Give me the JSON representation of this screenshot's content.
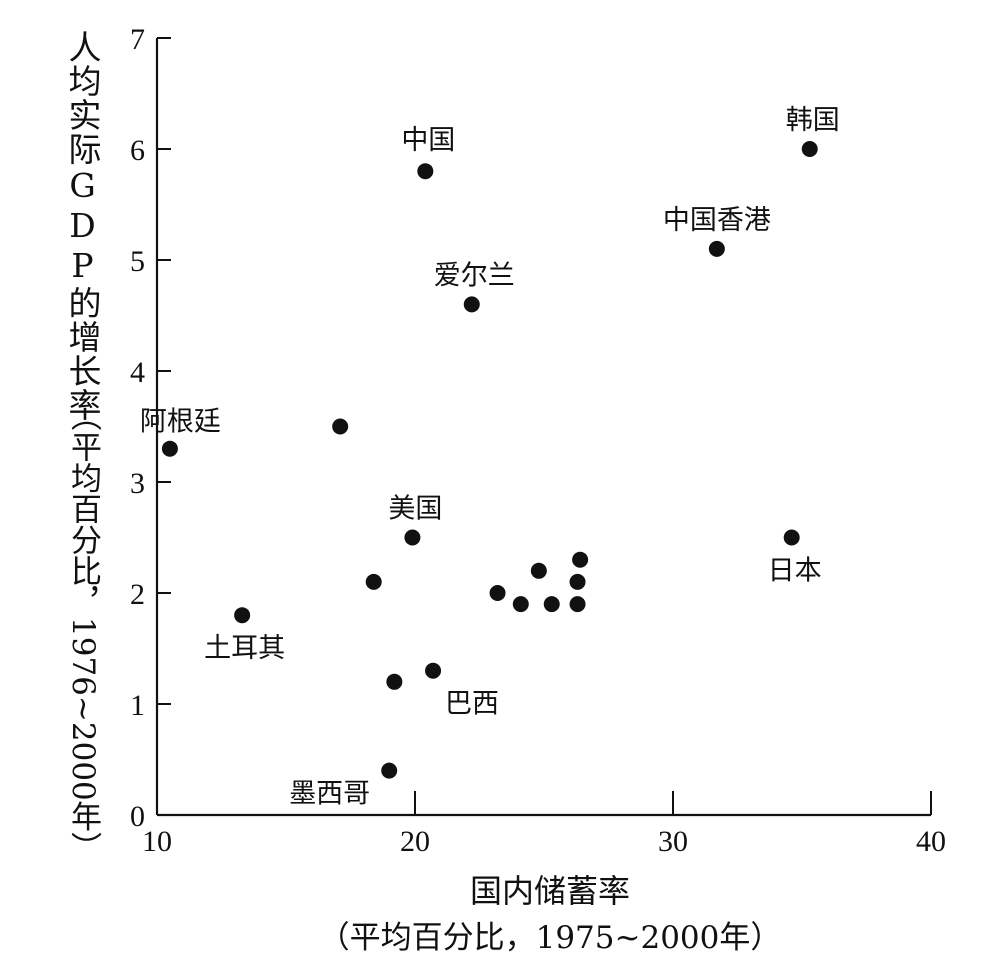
{
  "chart_data": {
    "type": "scatter",
    "xlabel": "国内储蓄率",
    "xlabel_sub": "（平均百分比，1975~2000年）",
    "ylabel": "人均实际GDP的增长率",
    "ylabel_sub": "（平均百分比，1976~2000年）",
    "xlim": [
      10,
      40
    ],
    "ylim": [
      0,
      7
    ],
    "xticks": [
      10,
      20,
      30,
      40
    ],
    "yticks": [
      0,
      1,
      2,
      3,
      4,
      5,
      6,
      7
    ],
    "grid": false,
    "points": [
      {
        "x": 10.5,
        "y": 3.3,
        "label": "阿根廷"
      },
      {
        "x": 13.3,
        "y": 1.8,
        "label": "土耳其"
      },
      {
        "x": 17.1,
        "y": 3.5,
        "label": ""
      },
      {
        "x": 18.4,
        "y": 2.1,
        "label": ""
      },
      {
        "x": 19.0,
        "y": 0.4,
        "label": "墨西哥"
      },
      {
        "x": 19.2,
        "y": 1.2,
        "label": ""
      },
      {
        "x": 19.9,
        "y": 2.5,
        "label": "美国"
      },
      {
        "x": 20.4,
        "y": 5.8,
        "label": "中国"
      },
      {
        "x": 20.7,
        "y": 1.3,
        "label": "巴西"
      },
      {
        "x": 22.2,
        "y": 4.6,
        "label": "爱尔兰"
      },
      {
        "x": 23.2,
        "y": 2.0,
        "label": ""
      },
      {
        "x": 24.1,
        "y": 1.9,
        "label": ""
      },
      {
        "x": 24.8,
        "y": 2.2,
        "label": ""
      },
      {
        "x": 25.3,
        "y": 1.9,
        "label": ""
      },
      {
        "x": 26.3,
        "y": 1.9,
        "label": ""
      },
      {
        "x": 26.3,
        "y": 2.1,
        "label": ""
      },
      {
        "x": 26.4,
        "y": 2.3,
        "label": ""
      },
      {
        "x": 31.7,
        "y": 5.1,
        "label": "中国香港"
      },
      {
        "x": 34.6,
        "y": 2.5,
        "label": "日本"
      },
      {
        "x": 35.3,
        "y": 6.0,
        "label": "韩国"
      }
    ]
  }
}
